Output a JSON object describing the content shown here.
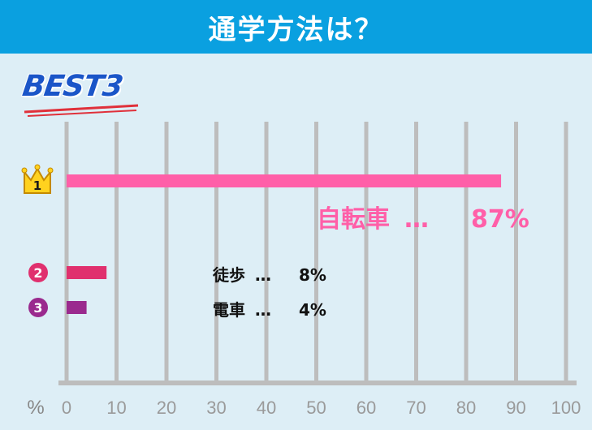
{
  "header": {
    "title": "通学方法は？"
  },
  "badge": {
    "text": "BEST3"
  },
  "colors": {
    "header_bg": "#0aa0e0",
    "background": "#ddeef6",
    "grid": "#bdbdbd",
    "rank1": "#ff5fa8",
    "rank2": "#e0306e",
    "rank3": "#9a2a8e",
    "crown": "#ffd21f"
  },
  "chart_data": {
    "type": "bar",
    "orientation": "horizontal",
    "unit_label": "%",
    "xlim": [
      0,
      100
    ],
    "ticks": [
      "0",
      "10",
      "20",
      "30",
      "40",
      "50",
      "60",
      "70",
      "80",
      "90",
      "100"
    ],
    "grid": true,
    "bars": [
      {
        "rank": "1",
        "label": "自転車",
        "separator": "…",
        "value": 87,
        "value_text": "87%",
        "color": "#ff5fa8"
      },
      {
        "rank": "2",
        "label": "徒歩",
        "separator": "…",
        "value": 8,
        "value_text": "8%",
        "color": "#e0306e"
      },
      {
        "rank": "3",
        "label": "電車",
        "separator": "…",
        "value": 4,
        "value_text": "4%",
        "color": "#9a2a8e"
      }
    ]
  }
}
